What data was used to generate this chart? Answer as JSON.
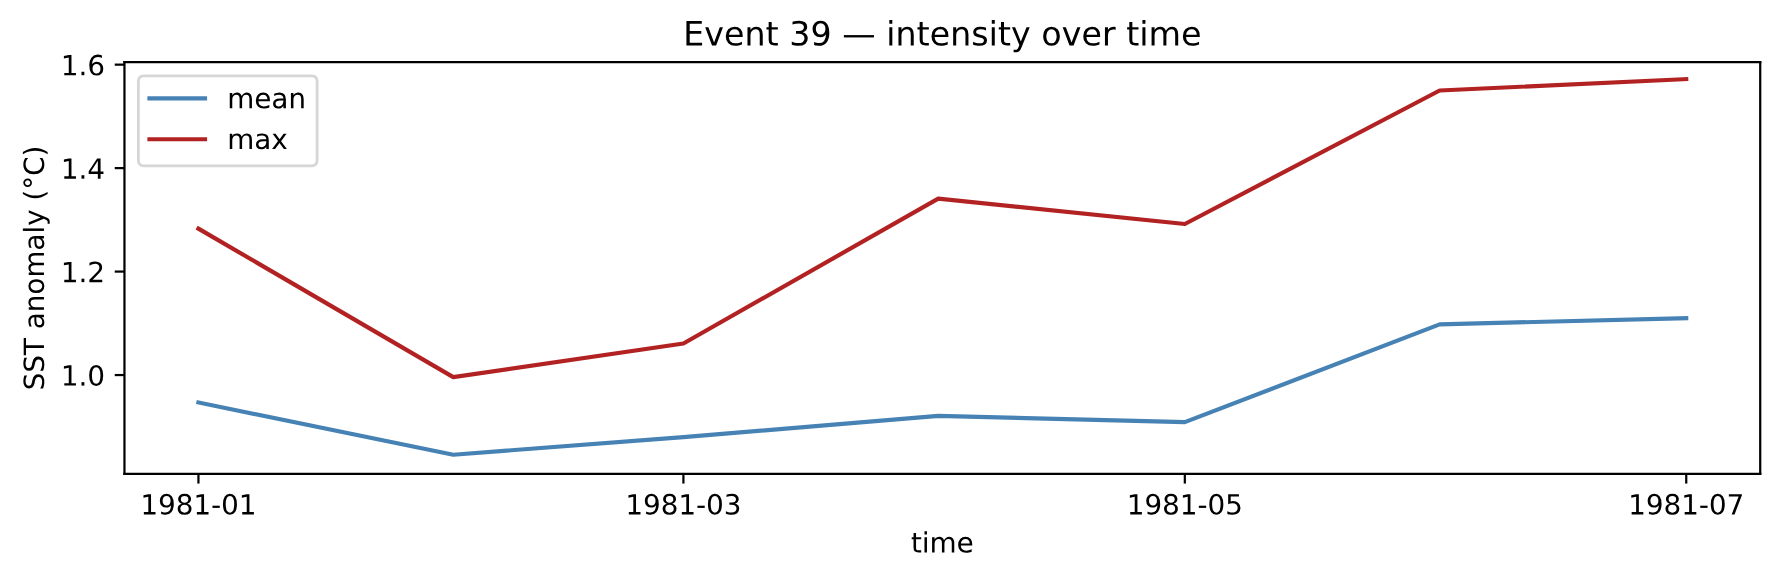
{
  "chart_data": {
    "type": "line",
    "title": "Event 39 — intensity over time",
    "xlabel": "time",
    "ylabel": "SST anomaly (°C)",
    "x": [
      "1981-01",
      "1981-02",
      "1981-03",
      "1981-04",
      "1981-05",
      "1981-06",
      "1981-07"
    ],
    "series": [
      {
        "name": "mean",
        "color": "#4682b4",
        "values": [
          0.947,
          0.846,
          0.88,
          0.921,
          0.909,
          1.098,
          1.11
        ]
      },
      {
        "name": "max",
        "color": "#b22222",
        "values": [
          1.283,
          0.996,
          1.061,
          1.341,
          1.292,
          1.55,
          1.572
        ]
      }
    ],
    "xlim": [
      "1980-12-23",
      "1981-07-10"
    ],
    "xticks": [
      "1981-01",
      "1981-03",
      "1981-05",
      "1981-07"
    ],
    "ylim": [
      0.809,
      1.605
    ],
    "yticks": [
      {
        "value": 1,
        "label": "1.0"
      },
      1.2,
      1.4,
      1.6
    ],
    "grid": false,
    "legend": "top left",
    "marker": "none",
    "line_style": "solid"
  }
}
